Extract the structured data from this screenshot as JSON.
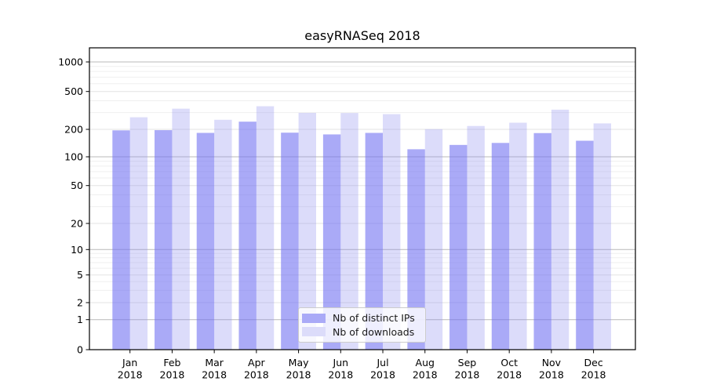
{
  "figure": {
    "title": "easyRNASeq 2018"
  },
  "chart_data": {
    "type": "bar",
    "title": "easyRNASeq 2018",
    "categories": [
      "Jan 2018",
      "Feb 2018",
      "Mar 2018",
      "Apr 2018",
      "May 2018",
      "Jun 2018",
      "Jul 2018",
      "Aug 2018",
      "Sep 2018",
      "Oct 2018",
      "Nov 2018",
      "Dec 2018"
    ],
    "series": [
      {
        "name": "Nb of distinct IPs",
        "color_hex": "#aaaaf7",
        "values": [
          195,
          196,
          183,
          241,
          184,
          176,
          183,
          121,
          135,
          142,
          182,
          150
        ]
      },
      {
        "name": "Nb of downloads",
        "color_hex": "#dcdcfa",
        "values": [
          268,
          330,
          252,
          350,
          298,
          297,
          289,
          201,
          217,
          235,
          322,
          231
        ]
      }
    ],
    "y_ticks": [
      0,
      1,
      2,
      5,
      10,
      20,
      50,
      100,
      200,
      500,
      1000
    ],
    "y_minor_ticks": [
      3,
      4,
      6,
      7,
      8,
      9,
      30,
      40,
      60,
      70,
      80,
      90,
      300,
      400,
      600,
      700,
      800,
      900
    ],
    "y_scale": "log-like (symlog)",
    "ylim": [
      0,
      1400
    ],
    "xlabel": "",
    "ylabel": "",
    "grid": true,
    "legend_position": "lower center",
    "colors": {
      "bar_dark": "#aaaaf7",
      "bar_light": "#dcdcfa",
      "grid_major_pow10": "#b9b9b9",
      "grid_major": "#e3e3e3",
      "grid_minor": "#efefef",
      "axis": "#000000"
    }
  }
}
